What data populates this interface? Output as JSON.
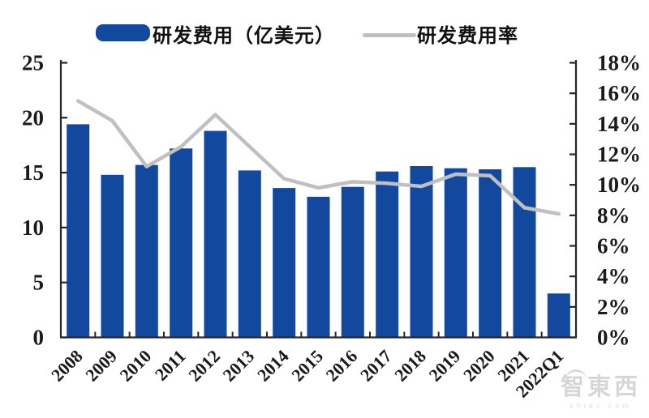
{
  "colors": {
    "bar_blue": "#12499E",
    "line_gray": "#C0C0C0",
    "axis_black": "#262626",
    "tick_label": "#1A1A1A",
    "watermark_gray": "#D6D6D6"
  },
  "legend": {
    "bar": {
      "label": "研发费用（亿美元）"
    },
    "line": {
      "label": "研发费用率"
    }
  },
  "watermark": {
    "logo": "智東西",
    "domain": "zhidx.com"
  },
  "chart_data": {
    "type": "bar+line combo",
    "title": "",
    "categories": [
      "2008",
      "2009",
      "2010",
      "2011",
      "2012",
      "2013",
      "2014",
      "2015",
      "2016",
      "2017",
      "2018",
      "2019",
      "2020",
      "2021",
      "2022Q1"
    ],
    "series": [
      {
        "name": "研发费用（亿美元）",
        "type": "bar",
        "axis": "left",
        "values": [
          19.4,
          14.8,
          15.7,
          17.2,
          18.8,
          15.2,
          13.6,
          12.8,
          13.7,
          15.1,
          15.6,
          15.4,
          15.3,
          15.5,
          4.0
        ]
      },
      {
        "name": "研发费用率",
        "type": "line",
        "axis": "right",
        "values_percent": [
          15.5,
          14.2,
          11.2,
          12.5,
          14.6,
          12.5,
          10.4,
          9.8,
          10.2,
          10.1,
          9.9,
          10.7,
          10.6,
          8.5,
          8.1
        ]
      }
    ],
    "left_axis": {
      "min": 0,
      "max": 25,
      "step": 5,
      "tick_labels": [
        "0",
        "5",
        "10",
        "15",
        "20",
        "25"
      ]
    },
    "right_axis": {
      "min": 0,
      "max": 18,
      "step": 2,
      "tick_labels": [
        "0%",
        "2%",
        "4%",
        "6%",
        "8%",
        "10%",
        "12%",
        "14%",
        "16%",
        "18%"
      ]
    },
    "grid": false,
    "legend_position": "top"
  }
}
